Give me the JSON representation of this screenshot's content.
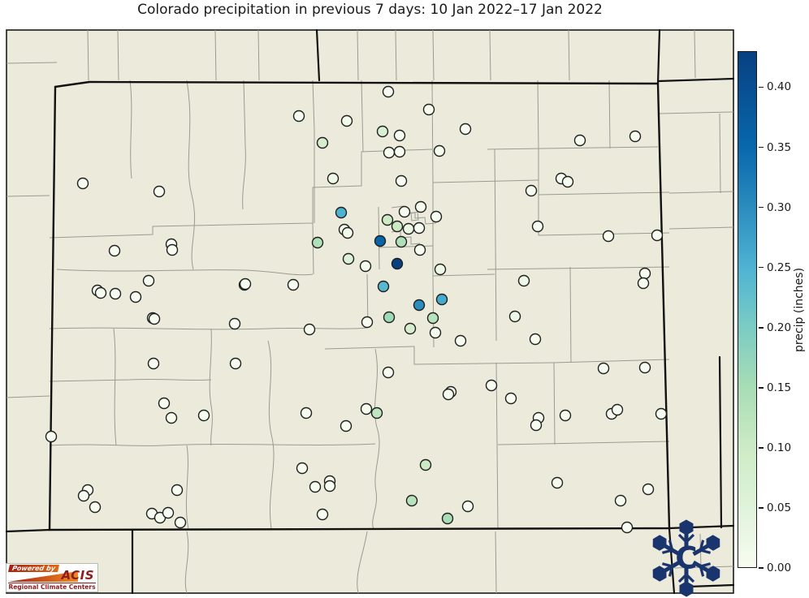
{
  "title": "Colorado precipitation in previous 7 days: 10 Jan 2022–17 Jan 2022",
  "colorbar": {
    "label": "precip (inches)",
    "vmin": 0,
    "vmax": 0.43,
    "ticks": [
      {
        "v": 0.0,
        "label": "0.00"
      },
      {
        "v": 0.05,
        "label": "0.05"
      },
      {
        "v": 0.1,
        "label": "0.10"
      },
      {
        "v": 0.15,
        "label": "0.15"
      },
      {
        "v": 0.2,
        "label": "0.20"
      },
      {
        "v": 0.25,
        "label": "0.25"
      },
      {
        "v": 0.3,
        "label": "0.30"
      },
      {
        "v": 0.35,
        "label": "0.35"
      },
      {
        "v": 0.4,
        "label": "0.40"
      }
    ]
  },
  "logos": {
    "acis": {
      "powered_by": "Powered by",
      "name": "ACIS",
      "subtitle": "Regional Climate Centers"
    },
    "snowflake": {
      "letter": "C"
    }
  },
  "colors": {
    "land": "#ECEBDB",
    "county_line": "#9a9a93",
    "state_border": "#111111",
    "frame": "#1a1a1a",
    "point_stroke": "#1f1f1f",
    "snowflake_navy": "#1a346d",
    "acis_red": "#8f1d1d",
    "title_text": "#1a1a1a"
  },
  "chart_data": {
    "type": "scatter",
    "subtype": "geographic-station-map",
    "region": "Colorado (county boundaries, neighboring states at edges)",
    "title": "Colorado precipitation in previous 7 days: 10 Jan 2022–17 Jan 2022",
    "value_label": "precip (inches)",
    "value_range": [
      0,
      0.43
    ],
    "colormap": "GnBu",
    "colormap_stops": [
      [
        0.0,
        "#f7fcf0"
      ],
      [
        0.05,
        "#e0f3db"
      ],
      [
        0.1,
        "#ccebc5"
      ],
      [
        0.15,
        "#a8ddb5"
      ],
      [
        0.2,
        "#7bccc4"
      ],
      [
        0.25,
        "#4eb3d3"
      ],
      [
        0.3,
        "#2b8cbe"
      ],
      [
        0.35,
        "#0868ac"
      ],
      [
        0.43,
        "#084081"
      ]
    ],
    "marker": {
      "shape": "circle",
      "radius_px": 6.5
    },
    "points_xyv_note": "pixel x, pixel y, estimated precip inches read from marker color",
    "points": [
      [
        478,
        113,
        0
      ],
      [
        368,
        143,
        0
      ],
      [
        427,
        149,
        0.01
      ],
      [
        528,
        135,
        0
      ],
      [
        471,
        162,
        0.07
      ],
      [
        492,
        167,
        0
      ],
      [
        573,
        159,
        0
      ],
      [
        397,
        176,
        0.08
      ],
      [
        479,
        188,
        0
      ],
      [
        492,
        187,
        0
      ],
      [
        541,
        186,
        0
      ],
      [
        410,
        220,
        0.02
      ],
      [
        494,
        223,
        0
      ],
      [
        714,
        173,
        0
      ],
      [
        782,
        168,
        0
      ],
      [
        691,
        220,
        0
      ],
      [
        699,
        224,
        0
      ],
      [
        654,
        235,
        0
      ],
      [
        662,
        279,
        0
      ],
      [
        749,
        291,
        0
      ],
      [
        809,
        290,
        0
      ],
      [
        102,
        226,
        0
      ],
      [
        196,
        236,
        0
      ],
      [
        141,
        309,
        0
      ],
      [
        211,
        301,
        0
      ],
      [
        212,
        308,
        0
      ],
      [
        183,
        346,
        0
      ],
      [
        120,
        358,
        0
      ],
      [
        124,
        361,
        0
      ],
      [
        142,
        362,
        0
      ],
      [
        167,
        366,
        0
      ],
      [
        301,
        351,
        0
      ],
      [
        420,
        262,
        0.25
      ],
      [
        424,
        283,
        0.01
      ],
      [
        428,
        287,
        0.01
      ],
      [
        477,
        271,
        0.1
      ],
      [
        489,
        279,
        0.1
      ],
      [
        498,
        261,
        0
      ],
      [
        518,
        255,
        0
      ],
      [
        503,
        282,
        0.03
      ],
      [
        516,
        281,
        0
      ],
      [
        537,
        267,
        0
      ],
      [
        468,
        297,
        0.36
      ],
      [
        494,
        298,
        0.14
      ],
      [
        517,
        308,
        0
      ],
      [
        429,
        319,
        0.06
      ],
      [
        450,
        328,
        0
      ],
      [
        489,
        325,
        0.43
      ],
      [
        542,
        332,
        0.02
      ],
      [
        472,
        353,
        0.24
      ],
      [
        544,
        369,
        0.26
      ],
      [
        516,
        376,
        0.3
      ],
      [
        479,
        391,
        0.16
      ],
      [
        533,
        392,
        0.13
      ],
      [
        505,
        405,
        0.08
      ],
      [
        536,
        410,
        0
      ],
      [
        567,
        420,
        0
      ],
      [
        391,
        299,
        0.14
      ],
      [
        302,
        350,
        0
      ],
      [
        361,
        351,
        0
      ],
      [
        188,
        392,
        0
      ],
      [
        381,
        406,
        0
      ],
      [
        452,
        397,
        0
      ],
      [
        634,
        390,
        0.02
      ],
      [
        659,
        418,
        0
      ],
      [
        645,
        346,
        0.02
      ],
      [
        743,
        454,
        0
      ],
      [
        794,
        453,
        0
      ],
      [
        794,
        337,
        0
      ],
      [
        792,
        349,
        0
      ],
      [
        605,
        475,
        0
      ],
      [
        629,
        491,
        0
      ],
      [
        555,
        483,
        0
      ],
      [
        552,
        486,
        0
      ],
      [
        478,
        459,
        0
      ],
      [
        190,
        393,
        0
      ],
      [
        289,
        399,
        0
      ],
      [
        189,
        448,
        0
      ],
      [
        290,
        448,
        0
      ],
      [
        202,
        497,
        0
      ],
      [
        211,
        515,
        0
      ],
      [
        251,
        512,
        0
      ],
      [
        63,
        538,
        0
      ],
      [
        377,
        509,
        0
      ],
      [
        426,
        525,
        0
      ],
      [
        451,
        504,
        0
      ],
      [
        464,
        509,
        0.12
      ],
      [
        372,
        577,
        0
      ],
      [
        108,
        604,
        0
      ],
      [
        103,
        611,
        0
      ],
      [
        117,
        625,
        0
      ],
      [
        218,
        604,
        0
      ],
      [
        187,
        633,
        0
      ],
      [
        197,
        638,
        0
      ],
      [
        207,
        632,
        0
      ],
      [
        222,
        644,
        0
      ],
      [
        388,
        600,
        0
      ],
      [
        397,
        634,
        0
      ],
      [
        406,
        593,
        0
      ],
      [
        406,
        599,
        0
      ],
      [
        524,
        573,
        0.1
      ],
      [
        507,
        617,
        0.13
      ],
      [
        576,
        624,
        0
      ],
      [
        551,
        639,
        0.15
      ],
      [
        686,
        595,
        0
      ],
      [
        798,
        603,
        0
      ],
      [
        764,
        617,
        0
      ],
      [
        772,
        650,
        0
      ],
      [
        663,
        515,
        0
      ],
      [
        660,
        524,
        0
      ],
      [
        696,
        512,
        0
      ],
      [
        753,
        510,
        0
      ],
      [
        760,
        505,
        0
      ],
      [
        814,
        510,
        0
      ]
    ],
    "legend_position": "right vertical colorbar",
    "grid": false
  }
}
